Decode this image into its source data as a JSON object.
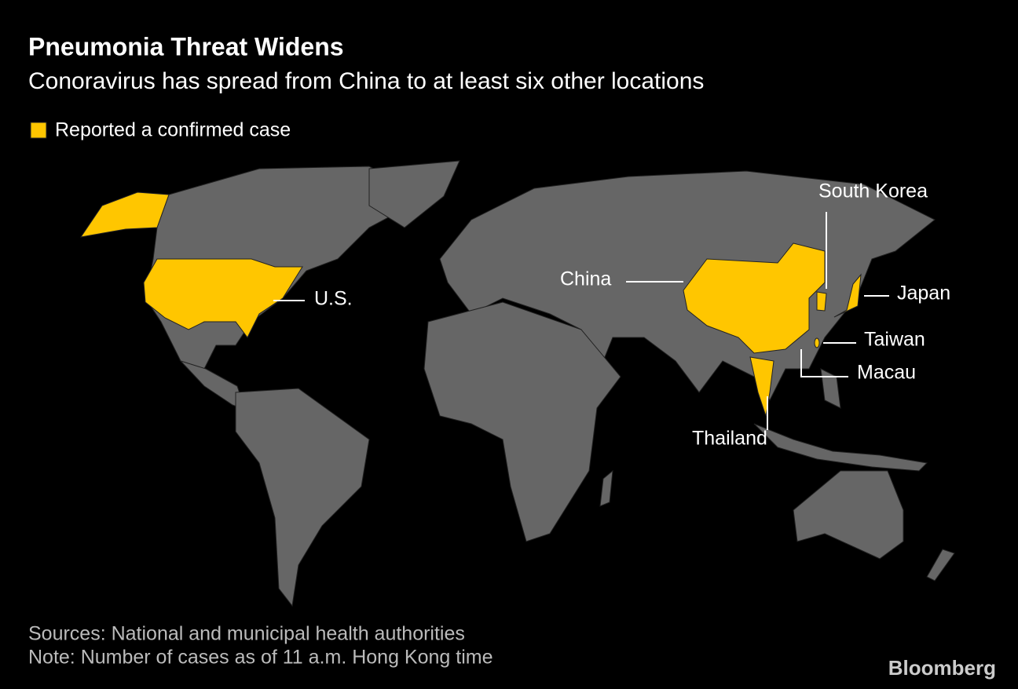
{
  "header": {
    "title": "Pneumonia Threat Widens",
    "subtitle": "Conoravirus has spread from China to at least six other locations"
  },
  "legend": {
    "label": "Reported a confirmed case",
    "color": "#ffc600"
  },
  "map": {
    "labels": [
      "South Korea",
      "China",
      "Japan",
      "U.S.",
      "Taiwan",
      "Macau",
      "Thailand"
    ]
  },
  "footer": {
    "sources": "Sources: National and municipal health authorities",
    "note": "Note: Number of cases as of 11 a.m. Hong Kong time",
    "brand": "Bloomberg"
  }
}
